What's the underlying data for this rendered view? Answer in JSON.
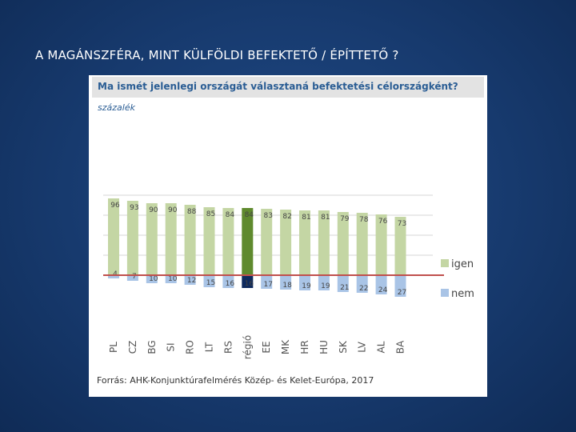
{
  "slide": {
    "title": "A MAGÁNSZFÉRA, MINT KÜLFÖLDI BEFEKTETŐ / ÉPÍTTETŐ ?"
  },
  "chart_data": {
    "type": "bar",
    "title": "Ma ismét jelenlegi országát választaná befektetési célországként?",
    "subtitle": "százalék",
    "source": "Forrás: AHK-Konjunktúrafelmérés Közép- és Kelet-Európa, 2017",
    "categories": [
      "PL",
      "CZ",
      "BG",
      "SI",
      "RO",
      "LT",
      "RS",
      "régió",
      "EE",
      "MK",
      "HR",
      "HU",
      "SK",
      "LV",
      "AL",
      "BA"
    ],
    "series": [
      {
        "name": "igen",
        "values": [
          96,
          93,
          90,
          90,
          88,
          85,
          84,
          84,
          83,
          82,
          81,
          81,
          79,
          78,
          76,
          73
        ]
      },
      {
        "name": "nem",
        "values": [
          4,
          7,
          10,
          10,
          12,
          15,
          16,
          16,
          17,
          18,
          19,
          19,
          21,
          22,
          24,
          27
        ]
      }
    ],
    "highlight_category": "régió",
    "colors": {
      "igen": "#c4d6a4",
      "nem": "#a9c4e6",
      "igen_highlight": "#5f8a2e",
      "nem_highlight": "#0e2a5e",
      "baseline": "#c0504d"
    },
    "legend_position": "right",
    "grid": true,
    "ylim": [
      -30,
      100
    ]
  }
}
